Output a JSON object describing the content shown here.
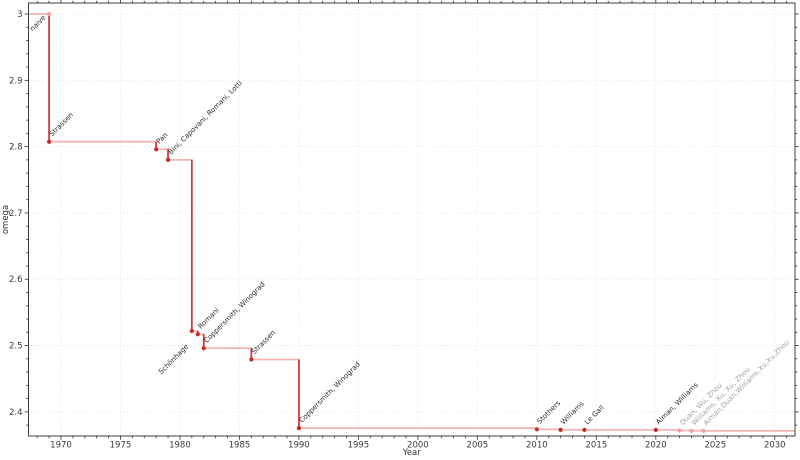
{
  "chart_data": {
    "type": "line",
    "subtype": "step-post",
    "title": "",
    "xlabel": "Year",
    "ylabel": "omega",
    "xlim": [
      1967.27,
      2031.7
    ],
    "ylim": [
      2.3636,
      3.0166
    ],
    "xticks_major": [
      1970,
      1975,
      1980,
      1985,
      1990,
      1995,
      2000,
      2005,
      2010,
      2015,
      2020,
      2025,
      2030
    ],
    "yticks_major": [
      2.4,
      2.5,
      2.6,
      2.7,
      2.8,
      2.9,
      3.0
    ],
    "ytick_labels": [
      "2.4",
      "2.5",
      "2.6",
      "2.7",
      "2.8",
      "2.9",
      "3"
    ],
    "x_minor_step": 1,
    "y_minor_step": 0.02,
    "grid": "major-dotted",
    "legend": "none",
    "points": [
      {
        "year": 1969,
        "omega": 3.0,
        "label": "naive",
        "marker_dim": true,
        "label_side": "lower_left",
        "label_gap": 4
      },
      {
        "year": 1969,
        "omega": 2.8074,
        "label": "Strassen"
      },
      {
        "year": 1978,
        "omega": 2.796,
        "label": "Pan"
      },
      {
        "year": 1979,
        "omega": 2.78,
        "label": "Bini, Capovani, Romani, Lotti"
      },
      {
        "year": 1981,
        "omega": 2.522,
        "label": "Schönhage",
        "label_side": "lower_left",
        "label_gap": 16
      },
      {
        "year": 1981.5,
        "omega": 2.517,
        "label": "Romani"
      },
      {
        "year": 1982,
        "omega": 2.496,
        "label": "Coppersmith, Winograd"
      },
      {
        "year": 1986,
        "omega": 2.479,
        "label": "Strassen"
      },
      {
        "year": 1990,
        "omega": 2.3755,
        "label": "Coppersmith, Winograd"
      },
      {
        "year": 2010,
        "omega": 2.3737,
        "label": "Stothers"
      },
      {
        "year": 2012,
        "omega": 2.3729,
        "label": "Williams"
      },
      {
        "year": 2014,
        "omega": 2.3728639,
        "label": "Le Gall"
      },
      {
        "year": 2020,
        "omega": 2.3728596,
        "label": "Alman, Williams"
      },
      {
        "year": 2022,
        "omega": 2.371866,
        "label": "Duan, Wu, Zhou",
        "dim": true
      },
      {
        "year": 2023,
        "omega": 2.371552,
        "label": "Williams, Xu, Xu, Zhou",
        "dim": true
      },
      {
        "year": 2024,
        "omega": 2.371339,
        "label": "Alman,Duan,Williams,Xu,Xu,Zhou",
        "dim": true
      }
    ],
    "colors": {
      "background": "#ffffff",
      "step_line": "#f2b5b5",
      "drop_line": "#d62f2f",
      "marker": "#c62a2a",
      "marker_dim": "#f0a2a2",
      "label": "#2f2f2f",
      "label_dim": "#a3a3a3",
      "grid": "#dedede",
      "axis": "#2b2b2b",
      "tick_label": "#3a3a3a"
    }
  }
}
